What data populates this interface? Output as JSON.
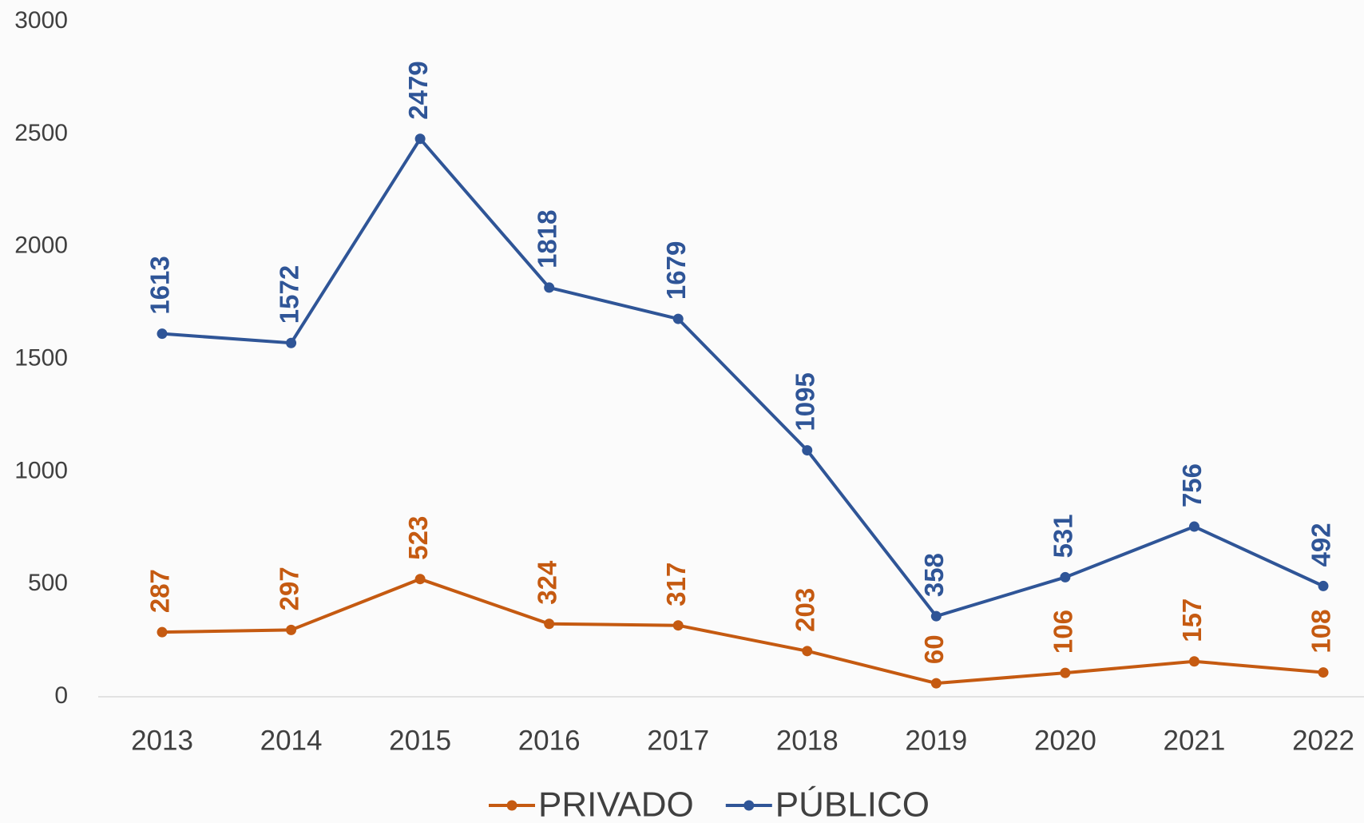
{
  "chart_data": {
    "type": "line",
    "x": [
      2013,
      2014,
      2015,
      2016,
      2017,
      2018,
      2019,
      2020,
      2021,
      2022
    ],
    "series": [
      {
        "name": "PRIVADO",
        "color": "#c55a11",
        "values": [
          287,
          297,
          523,
          324,
          317,
          203,
          60,
          106,
          157,
          108
        ]
      },
      {
        "name": "PÚBLICO",
        "color": "#2f5597",
        "values": [
          1613,
          1572,
          2479,
          1818,
          1679,
          1095,
          358,
          531,
          756,
          492
        ]
      }
    ],
    "ylim": [
      0,
      3000
    ],
    "yticks": [
      0,
      500,
      1000,
      1500,
      2000,
      2500,
      3000
    ],
    "grid": false,
    "legend": "bottom"
  }
}
